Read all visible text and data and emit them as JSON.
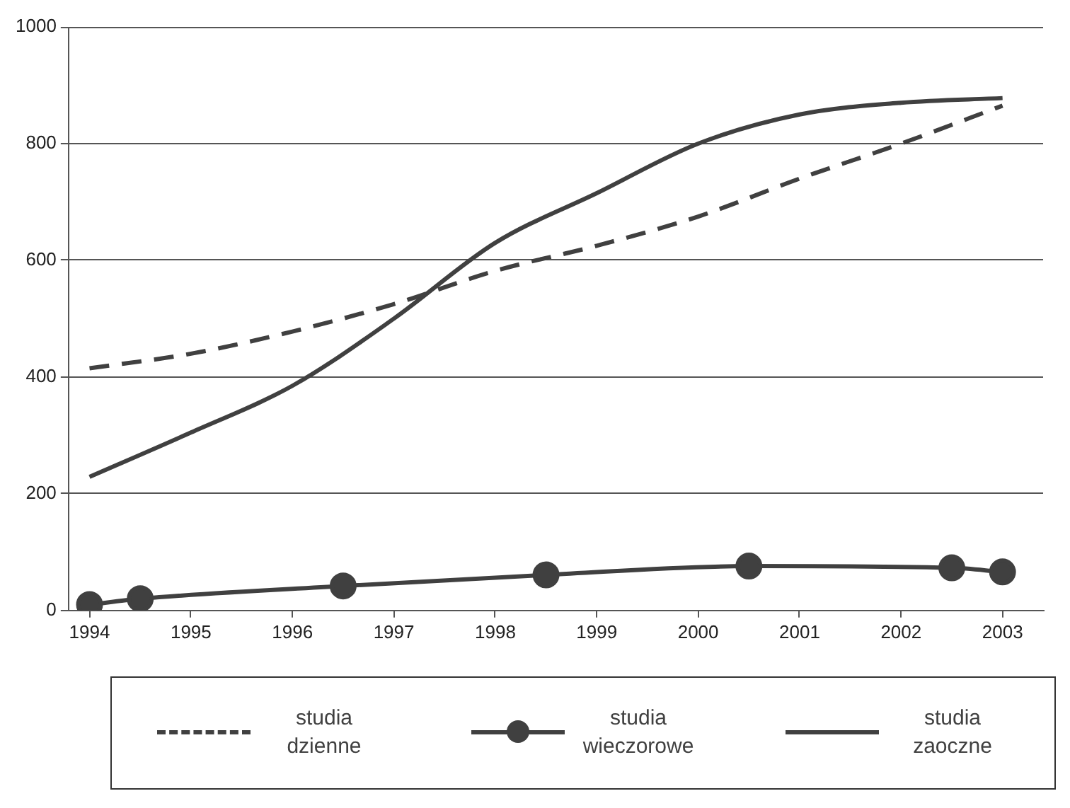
{
  "chart_data": {
    "type": "line",
    "xlim": [
      1993.8,
      2003.4
    ],
    "xticks": [
      1994,
      1995,
      1996,
      1997,
      1998,
      1999,
      2000,
      2001,
      2002,
      2003
    ],
    "ylim": [
      0,
      1000
    ],
    "yticks": [
      0,
      200,
      400,
      600,
      800,
      1000
    ],
    "grid": "y",
    "legend": "bottom",
    "series": [
      {
        "name": "studia dzienne",
        "color": "#404040",
        "line_style": "dashed",
        "marker": "none",
        "x": [
          1994,
          1995,
          1996,
          1997,
          1998,
          1999,
          2000,
          2001,
          2002,
          2003
        ],
        "values": [
          415,
          440,
          478,
          525,
          582,
          625,
          675,
          740,
          800,
          865
        ]
      },
      {
        "name": "studia wieczorowe",
        "color": "#404040",
        "line_style": "solid",
        "marker": "circle",
        "x": [
          1994,
          1994.5,
          1996.5,
          1998.5,
          2000.5,
          2002.5,
          2003
        ],
        "values": [
          10,
          20,
          42,
          61,
          76,
          73,
          66
        ]
      },
      {
        "name": "studia zaoczne",
        "color": "#404040",
        "line_style": "solid",
        "marker": "none",
        "x": [
          1994,
          1995,
          1996,
          1997,
          1998,
          1999,
          2000,
          2001,
          2002,
          2003
        ],
        "values": [
          229,
          305,
          385,
          500,
          630,
          715,
          800,
          850,
          870,
          878
        ]
      }
    ]
  }
}
